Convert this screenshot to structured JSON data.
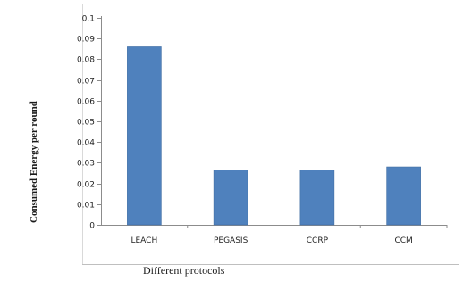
{
  "chart_data": {
    "type": "bar",
    "categories": [
      "LEACH",
      "PEGASIS",
      "CCRP",
      "CCM"
    ],
    "values": [
      0.086,
      0.0265,
      0.0265,
      0.028
    ],
    "title": "",
    "xlabel": "Different protocols",
    "ylabel": "Consumed Energy per round",
    "ylim": [
      0,
      0.1
    ],
    "yticks": [
      "0",
      "0.01",
      "0.02",
      "0.03",
      "0.04",
      "0.05",
      "0.06",
      "0.07",
      "0.08",
      "0.09",
      "0.1"
    ],
    "grid": false,
    "legend": "none",
    "bar_color": "#4F81BD"
  }
}
